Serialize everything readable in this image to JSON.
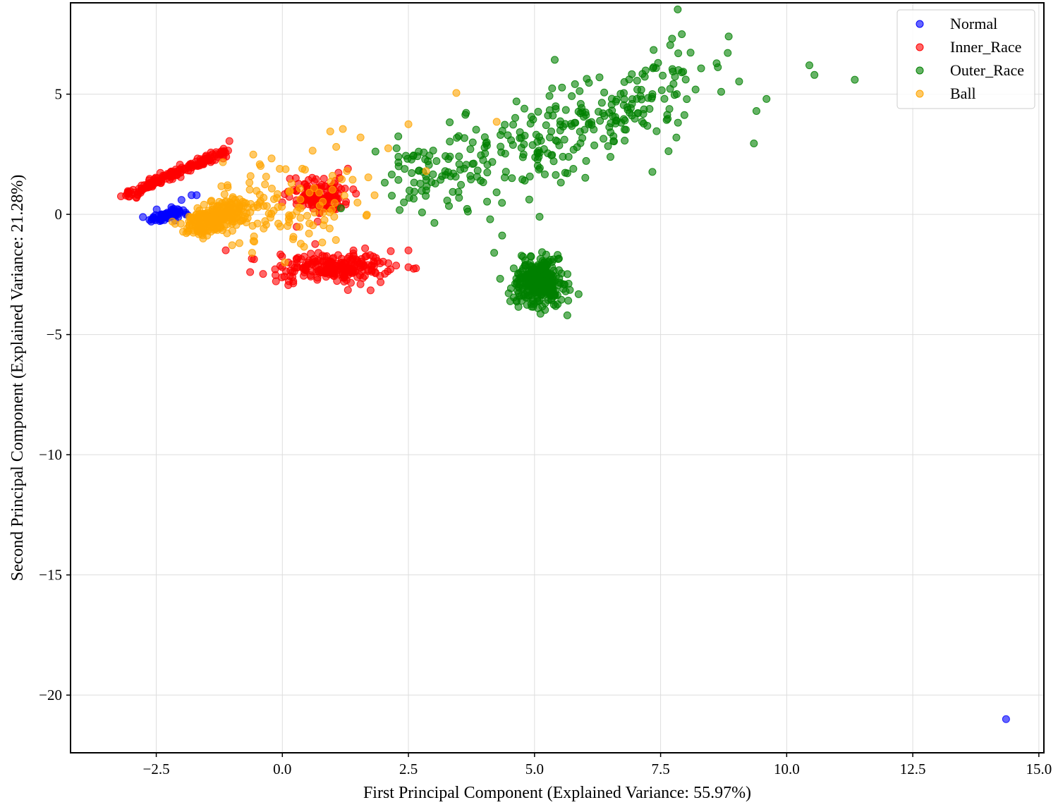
{
  "chart_data": {
    "type": "scatter",
    "title": "",
    "xlabel": "First Principal Component (Explained Variance: 55.97%)",
    "ylabel": "Second Principal Component (Explained Variance: 21.28%)",
    "xlim": [
      -4.2,
      15.1
    ],
    "ylim": [
      -22.4,
      8.8
    ],
    "xticks": [
      -2.5,
      0.0,
      2.5,
      5.0,
      7.5,
      10.0,
      12.5,
      15.0
    ],
    "xtick_labels": [
      "−2.5",
      "0.0",
      "2.5",
      "5.0",
      "7.5",
      "10.0",
      "12.5",
      "15.0"
    ],
    "yticks": [
      -20,
      -15,
      -10,
      -5,
      0,
      5
    ],
    "ytick_labels": [
      "−20",
      "−15",
      "−10",
      "−5",
      "0",
      "5"
    ],
    "grid": true,
    "legend_position": "top-right",
    "series": [
      {
        "name": "Normal",
        "color": "#0000ff",
        "clusters": [
          {
            "points": [
              [
                -2.6,
                -0.3
              ],
              [
                -2.4,
                0.0
              ],
              [
                -2.2,
                0.3
              ],
              [
                -2.0,
                0.6
              ],
              [
                -1.8,
                0.8
              ],
              [
                -1.7,
                0.8
              ],
              [
                14.35,
                -21.0
              ]
            ]
          },
          {
            "generate": {
              "x0": -2.5,
              "y0": -0.2,
              "dx": 0.55,
              "dy": 0.35,
              "sx": 0.1,
              "sy": 0.1,
              "n": 70
            }
          }
        ]
      },
      {
        "name": "Inner_Race",
        "color": "#ff0000",
        "clusters": [
          {
            "points": [
              [
                -3.2,
                0.75
              ],
              [
                -1.05,
                3.05
              ],
              [
                0.2,
                -2.6
              ],
              [
                2.5,
                -1.5
              ],
              [
                2.5,
                -2.2
              ],
              [
                1.3,
                -3.15
              ],
              [
                1.3,
                1.9
              ],
              [
                0.7,
                -0.3
              ]
            ]
          },
          {
            "generate": {
              "x0": -3.1,
              "y0": 0.8,
              "dx": 1.95,
              "dy": 1.8,
              "sx": 0.06,
              "sy": 0.08,
              "n": 170
            }
          },
          {
            "generate": {
              "x0": 0.7,
              "y0": 0.75,
              "sx": 0.3,
              "sy": 0.35,
              "n": 140
            }
          },
          {
            "generate": {
              "x0": 1.0,
              "y0": -2.2,
              "sx": 0.55,
              "sy": 0.32,
              "n": 230
            }
          }
        ]
      },
      {
        "name": "Outer_Race",
        "color": "#008000",
        "clusters": [
          {
            "points": [
              [
                8.85,
                7.4
              ],
              [
                10.45,
                6.2
              ],
              [
                10.55,
                5.8
              ],
              [
                11.35,
                5.6
              ],
              [
                9.6,
                4.8
              ],
              [
                9.4,
                4.3
              ],
              [
                9.35,
                2.95
              ],
              [
                7.85,
                6.7
              ],
              [
                5.1,
                -0.1
              ],
              [
                5.65,
                -4.2
              ],
              [
                4.2,
                -1.6
              ],
              [
                7.45,
                6.3
              ]
            ]
          },
          {
            "generate": {
              "x0": 5.1,
              "y0": -2.8,
              "sx": 0.25,
              "sy": 0.5,
              "n": 320
            }
          },
          {
            "generate": {
              "x0": 2.3,
              "y0": 1.0,
              "dx": 5.8,
              "dy": 4.5,
              "sx": 0.55,
              "sy": 0.9,
              "n": 330
            }
          }
        ]
      },
      {
        "name": "Ball",
        "color": "#ffa500",
        "clusters": [
          {
            "points": [
              [
                3.45,
                5.05
              ],
              [
                2.5,
                3.75
              ],
              [
                1.2,
                3.55
              ],
              [
                1.55,
                3.2
              ],
              [
                0.95,
                3.45
              ],
              [
                2.1,
                2.75
              ],
              [
                4.25,
                3.85
              ],
              [
                0.6,
                2.65
              ],
              [
                2.85,
                1.8
              ],
              [
                -0.6,
                -1.6
              ],
              [
                0.05,
                -2.0
              ]
            ]
          },
          {
            "generate": {
              "x0": -1.75,
              "y0": -0.6,
              "dx": 0.9,
              "dy": 0.9,
              "sx": 0.18,
              "sy": 0.25,
              "n": 270
            }
          },
          {
            "generate": {
              "x0": 0.0,
              "y0": 0.5,
              "sx": 0.7,
              "sy": 0.9,
              "n": 110
            }
          }
        ]
      }
    ]
  }
}
